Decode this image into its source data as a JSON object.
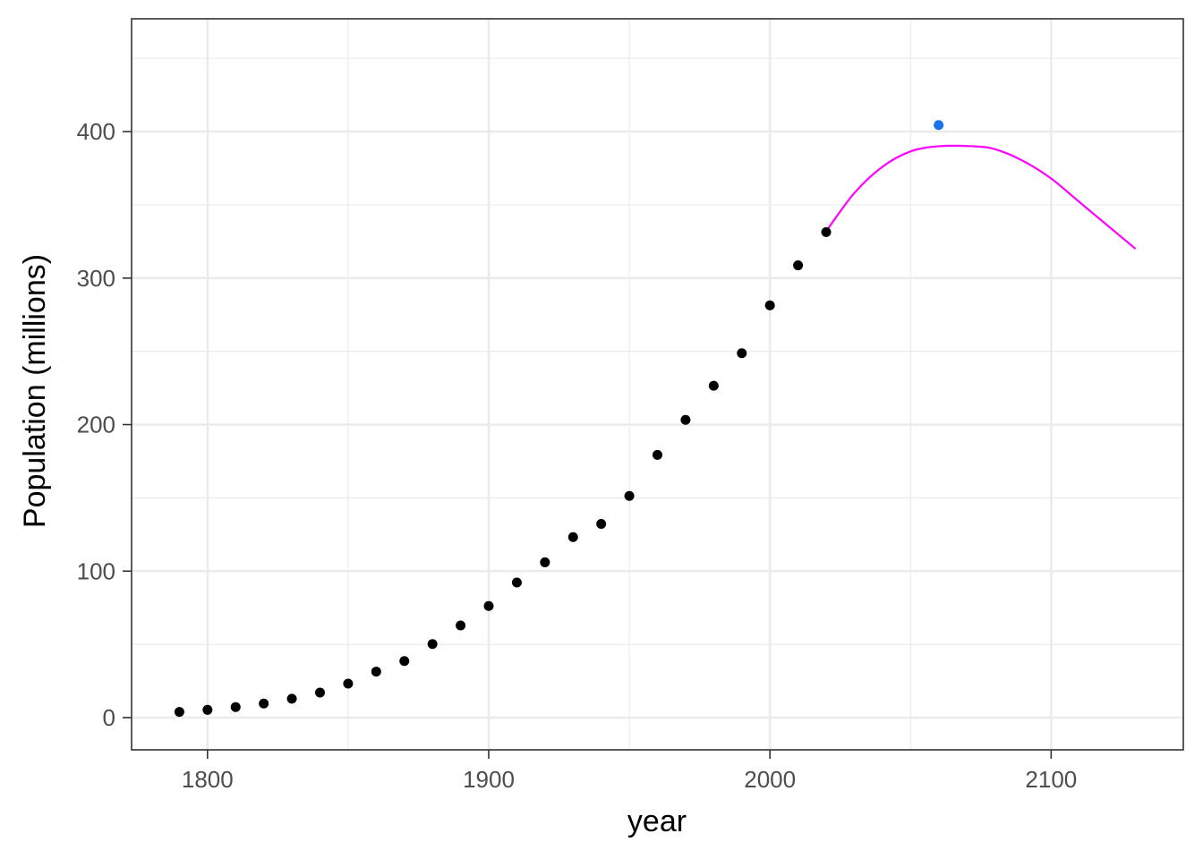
{
  "chart_data": {
    "type": "scatter",
    "xlabel": "year",
    "ylabel": "Population (millions)",
    "xlim": [
      1773,
      2147
    ],
    "ylim": [
      -22,
      477
    ],
    "x_ticks": [
      1800,
      1900,
      2000,
      2100
    ],
    "x_tick_labels": [
      "1800",
      "1900",
      "2000",
      "2100"
    ],
    "y_ticks": [
      0,
      100,
      200,
      300,
      400
    ],
    "y_tick_labels": [
      "0",
      "100",
      "200",
      "300",
      "400"
    ],
    "grid": true,
    "legend": "none",
    "series": [
      {
        "type": "scatter",
        "color": "#000000",
        "points": [
          [
            1790,
            3.9
          ],
          [
            1800,
            5.3
          ],
          [
            1810,
            7.2
          ],
          [
            1820,
            9.6
          ],
          [
            1830,
            12.9
          ],
          [
            1840,
            17.1
          ],
          [
            1850,
            23.2
          ],
          [
            1860,
            31.4
          ],
          [
            1870,
            38.6
          ],
          [
            1880,
            50.2
          ],
          [
            1890,
            62.9
          ],
          [
            1900,
            76.2
          ],
          [
            1910,
            92.2
          ],
          [
            1920,
            106.0
          ],
          [
            1930,
            123.2
          ],
          [
            1940,
            132.2
          ],
          [
            1950,
            151.3
          ],
          [
            1960,
            179.3
          ],
          [
            1970,
            203.2
          ],
          [
            1980,
            226.5
          ],
          [
            1990,
            248.7
          ],
          [
            2000,
            281.4
          ],
          [
            2010,
            308.7
          ],
          [
            2020,
            331.4
          ]
        ]
      },
      {
        "type": "line",
        "color": "#ff00ff",
        "points": [
          [
            2020,
            332
          ],
          [
            2030,
            358
          ],
          [
            2040,
            376
          ],
          [
            2050,
            386.5
          ],
          [
            2060,
            390
          ],
          [
            2072,
            390
          ],
          [
            2080,
            388
          ],
          [
            2090,
            380
          ],
          [
            2100,
            368
          ],
          [
            2110,
            352
          ],
          [
            2120,
            336
          ],
          [
            2130,
            320
          ]
        ]
      },
      {
        "type": "scatter",
        "color": "#1a73e8",
        "points": [
          [
            2060,
            404.5
          ]
        ]
      }
    ]
  }
}
